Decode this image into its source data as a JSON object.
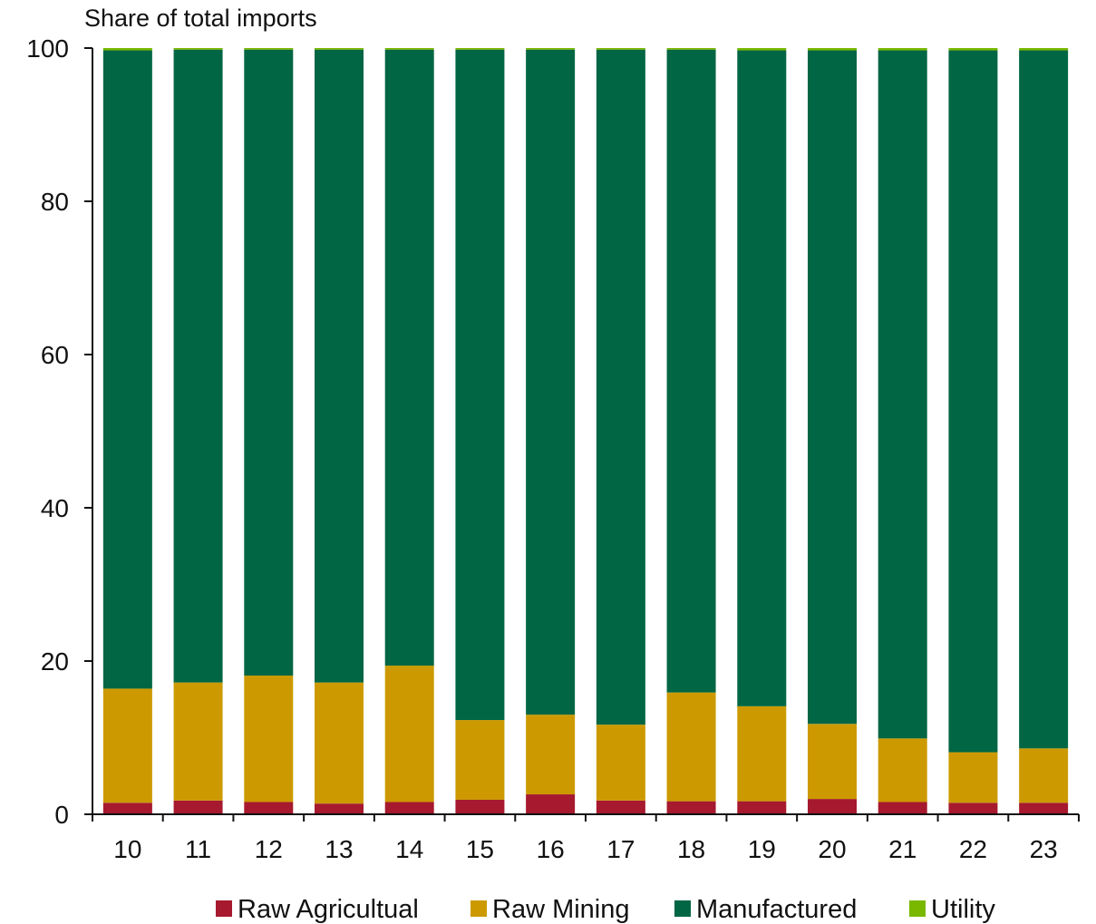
{
  "chart_data": {
    "type": "bar",
    "stacked": true,
    "title": "Share of total imports",
    "xlabel": "",
    "ylabel": "",
    "ylim": [
      0,
      100
    ],
    "yticks": [
      0,
      20,
      40,
      60,
      80,
      100
    ],
    "grid": false,
    "legend_position": "bottom",
    "categories": [
      "10",
      "11",
      "12",
      "13",
      "14",
      "15",
      "16",
      "17",
      "18",
      "19",
      "20",
      "21",
      "22",
      "23"
    ],
    "series": [
      {
        "name": "Raw Agricultual",
        "color": "#a6192e",
        "values": [
          1.5,
          1.8,
          1.6,
          1.4,
          1.6,
          1.9,
          2.6,
          1.8,
          1.7,
          1.7,
          2.0,
          1.6,
          1.5,
          1.5
        ]
      },
      {
        "name": "Raw Mining",
        "color": "#cc9a00",
        "values": [
          14.9,
          15.4,
          16.5,
          15.8,
          17.8,
          10.4,
          10.4,
          9.9,
          14.2,
          12.4,
          9.8,
          8.3,
          6.6,
          7.1
        ]
      },
      {
        "name": "Manufactured",
        "color": "#006643",
        "values": [
          83.3,
          82.6,
          81.7,
          82.6,
          80.4,
          87.5,
          86.8,
          88.1,
          83.9,
          85.6,
          87.9,
          89.8,
          91.6,
          91.1
        ]
      },
      {
        "name": "Utility",
        "color": "#7ab800",
        "values": [
          0.3,
          0.2,
          0.2,
          0.2,
          0.2,
          0.2,
          0.2,
          0.2,
          0.2,
          0.3,
          0.3,
          0.3,
          0.3,
          0.3
        ]
      }
    ]
  }
}
